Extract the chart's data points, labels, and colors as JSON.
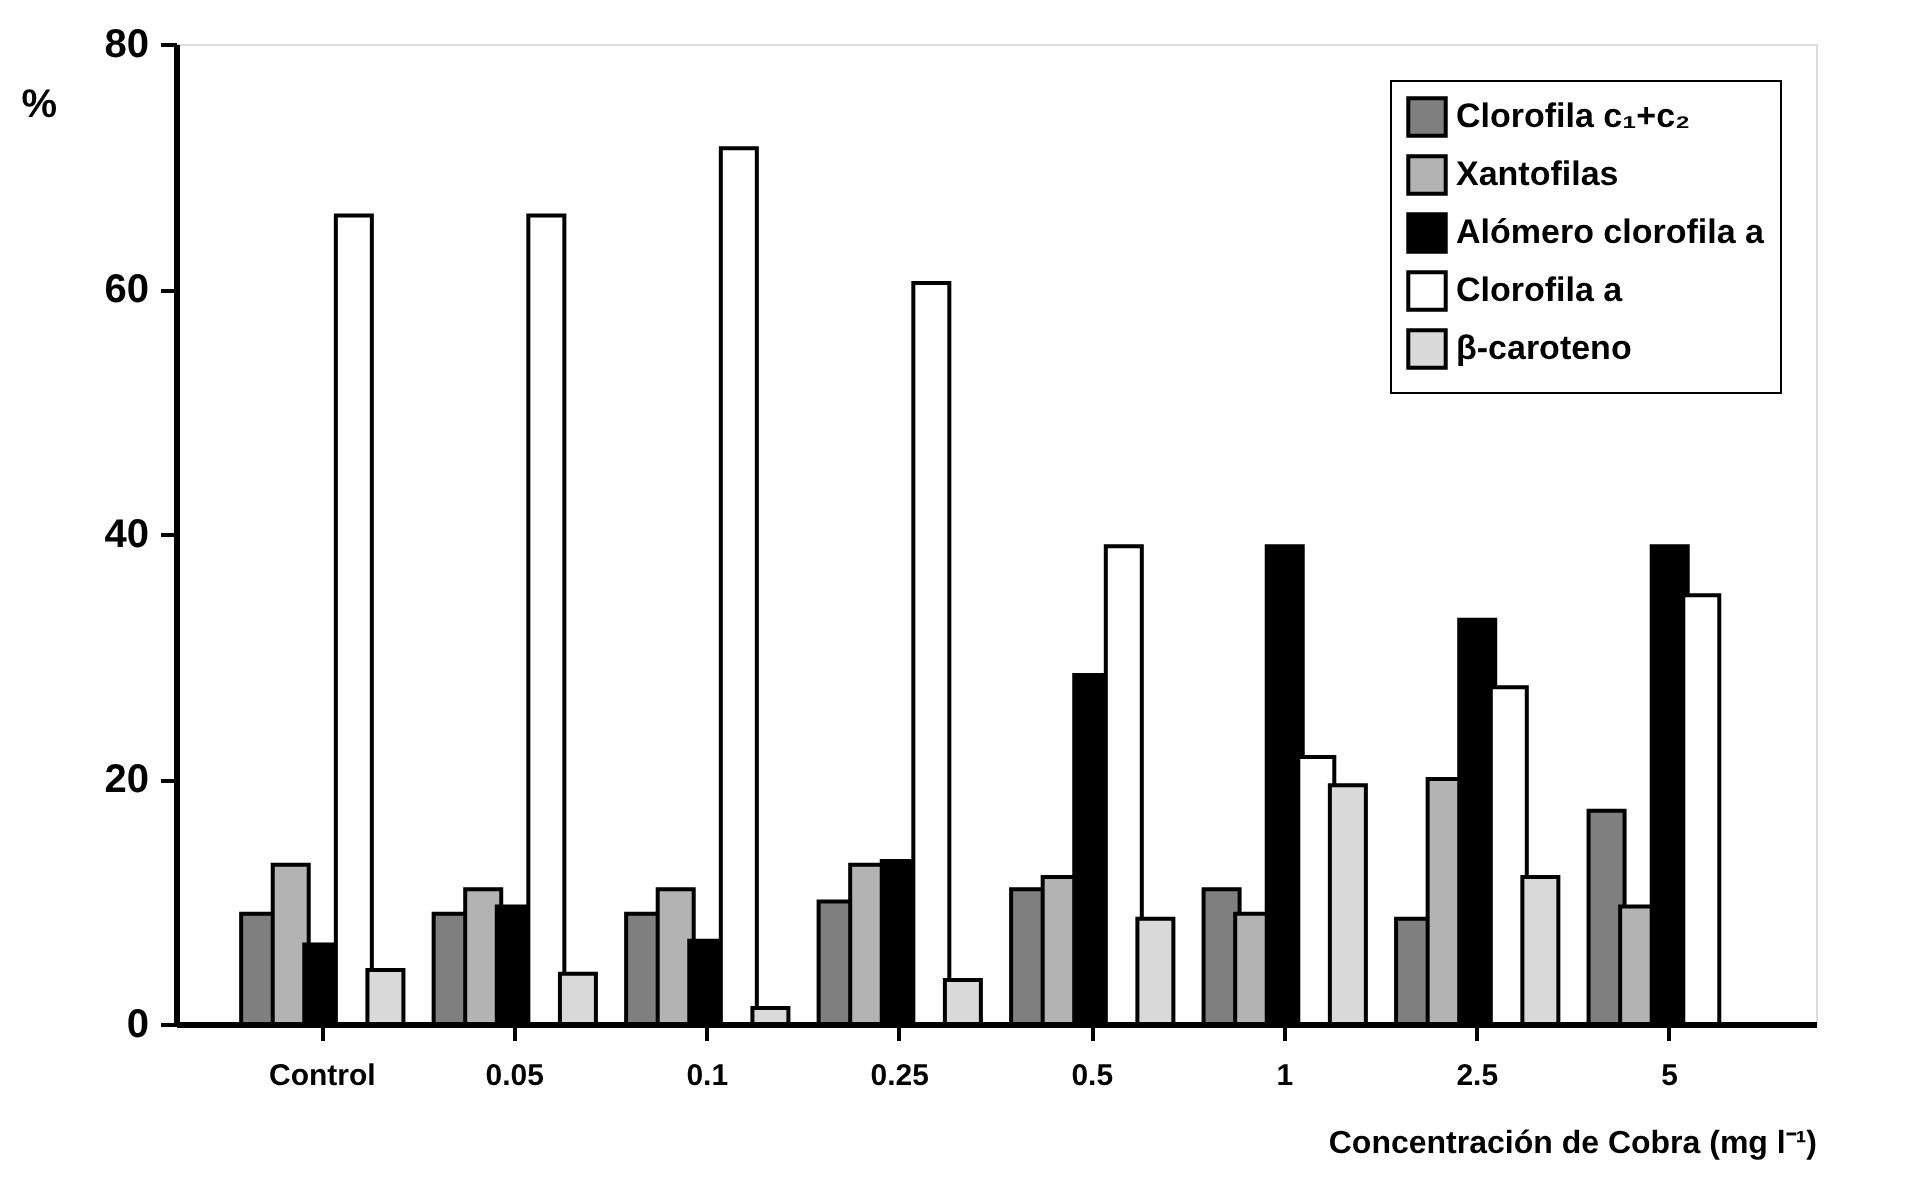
{
  "chart_data": {
    "type": "bar",
    "xlabel": "Concentración de Cobra (mg l⁻¹)",
    "ylabel": "%",
    "categories": [
      "Control",
      "0.05",
      "0.1",
      "0.25",
      "0.5",
      "1",
      "2.5",
      "5"
    ],
    "series": [
      {
        "name": "Clorofila c₁+c₂",
        "color": "#7f7f7f",
        "values": [
          9,
          9,
          9,
          10,
          11,
          11,
          8.6,
          17.4
        ]
      },
      {
        "name": "Xantofilas",
        "color": "#b3b3b3",
        "values": [
          13,
          11,
          11,
          13,
          12,
          9,
          20,
          9.6
        ]
      },
      {
        "name": "Alómero clorofila a",
        "color": "#000000",
        "values": [
          6.5,
          9.6,
          6.8,
          13.3,
          28.5,
          39,
          33,
          39
        ]
      },
      {
        "name": "Clorofila a",
        "color": "#ffffff",
        "values": [
          66,
          66,
          71.5,
          60.5,
          39,
          21.8,
          27.5,
          35
        ]
      },
      {
        "name": "β-caroteno",
        "color": "#d9d9d9",
        "values": [
          4.4,
          4.1,
          1.3,
          3.6,
          8.6,
          19.5,
          12,
          null
        ]
      }
    ],
    "ylim": [
      0,
      80
    ],
    "yticks": [
      0,
      20,
      40,
      60,
      80
    ],
    "grid": false,
    "legend": "top right"
  }
}
